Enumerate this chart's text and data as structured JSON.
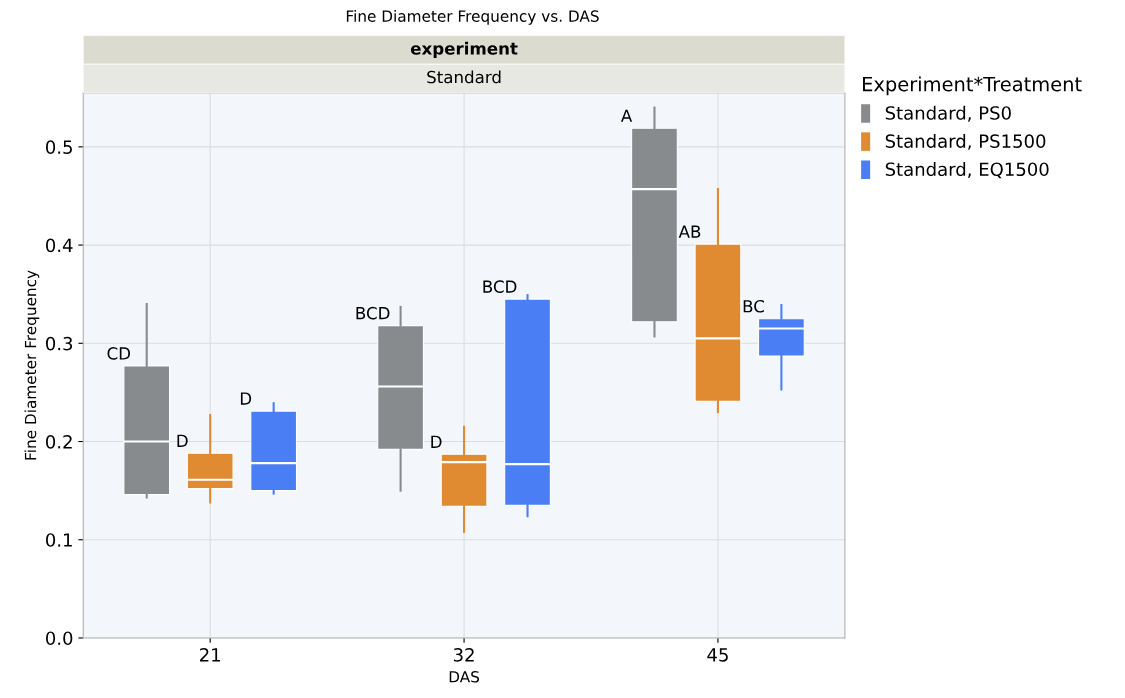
{
  "chart_data": {
    "type": "box",
    "title": "Fine Diameter Frequency vs. DAS",
    "annotations": [
      "experiment",
      "Standard"
    ],
    "xlabel": "DAS",
    "ylabel": "Fine Diameter Frequency",
    "legend_title": "Experiment*Treatment",
    "categories": [
      "21",
      "32",
      "45"
    ],
    "ylim": [
      0,
      0.555
    ],
    "yticks": [
      {
        "value": 0,
        "label": "0.0"
      },
      0.1,
      0.2,
      0.3,
      0.4,
      0.5
    ],
    "grid": true,
    "legend": "right",
    "series": [
      {
        "name": "Standard, PS0",
        "color": "#878b8e",
        "value_labels": [
          "CD",
          "BCD",
          "A"
        ],
        "boxes": [
          {
            "low": 0.143,
            "q1": 0.146,
            "median": 0.2,
            "q3": 0.277,
            "high": 0.34
          },
          {
            "low": 0.15,
            "q1": 0.192,
            "median": 0.256,
            "q3": 0.318,
            "high": 0.337
          },
          {
            "low": 0.307,
            "q1": 0.322,
            "median": 0.457,
            "q3": 0.519,
            "high": 0.54
          }
        ]
      },
      {
        "name": "Standard, PS1500",
        "color": "#e08a31",
        "value_labels": [
          "D",
          "D",
          "AB"
        ],
        "boxes": [
          {
            "low": 0.138,
            "q1": 0.152,
            "median": 0.161,
            "q3": 0.188,
            "high": 0.227
          },
          {
            "low": 0.108,
            "q1": 0.134,
            "median": 0.179,
            "q3": 0.187,
            "high": 0.215
          },
          {
            "low": 0.23,
            "q1": 0.241,
            "median": 0.305,
            "q3": 0.401,
            "high": 0.457
          }
        ]
      },
      {
        "name": "Standard, EQ1500",
        "color": "#4a7ef5",
        "value_labels": [
          "D",
          "BCD",
          "BC"
        ],
        "boxes": [
          {
            "low": 0.147,
            "q1": 0.15,
            "median": 0.178,
            "q3": 0.231,
            "high": 0.239
          },
          {
            "low": 0.124,
            "q1": 0.135,
            "median": 0.177,
            "q3": 0.345,
            "high": 0.349
          },
          {
            "low": 0.253,
            "q1": 0.287,
            "median": 0.315,
            "q3": 0.325,
            "high": 0.339
          }
        ]
      }
    ]
  }
}
